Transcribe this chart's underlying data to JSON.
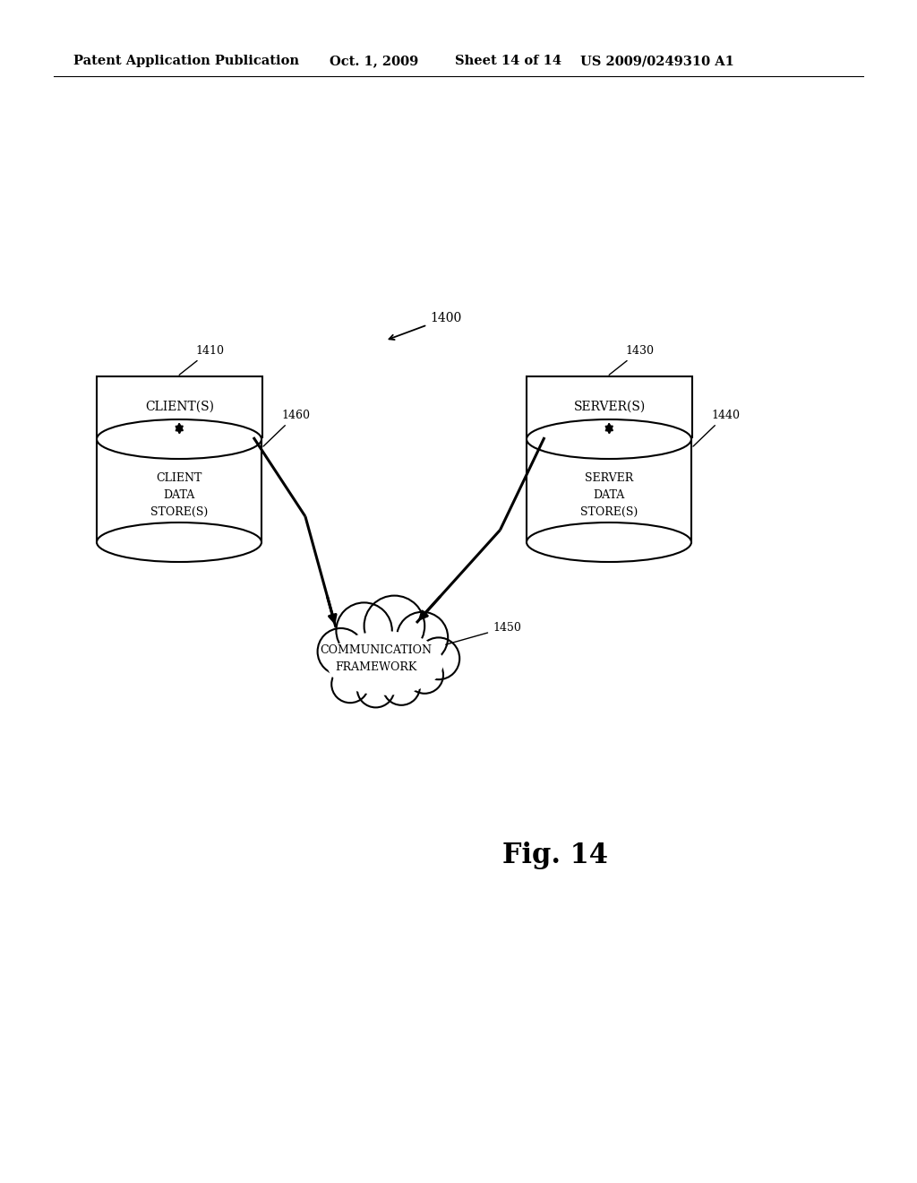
{
  "bg_color": "#ffffff",
  "header_text": "Patent Application Publication",
  "header_date": "Oct. 1, 2009",
  "header_sheet": "Sheet 14 of 14",
  "header_patent": "US 2009/0249310 A1",
  "fig_label": "Fig. 14",
  "label_1400": "1400",
  "client_box_label": "CLIENT(S)",
  "client_box_ref": "1410",
  "server_box_label": "SERVER(S)",
  "server_box_ref": "1430",
  "client_cyl_label": "CLIENT\nDATA\nSTORE(S)",
  "client_cyl_ref": "1460",
  "server_cyl_label": "SERVER\nDATA\nSTORE(S)",
  "server_cyl_ref": "1440",
  "cloud_label": "COMMUNICATION\nFRAMEWORK",
  "cloud_ref": "1450",
  "text_color": "#000000",
  "line_color": "#000000"
}
